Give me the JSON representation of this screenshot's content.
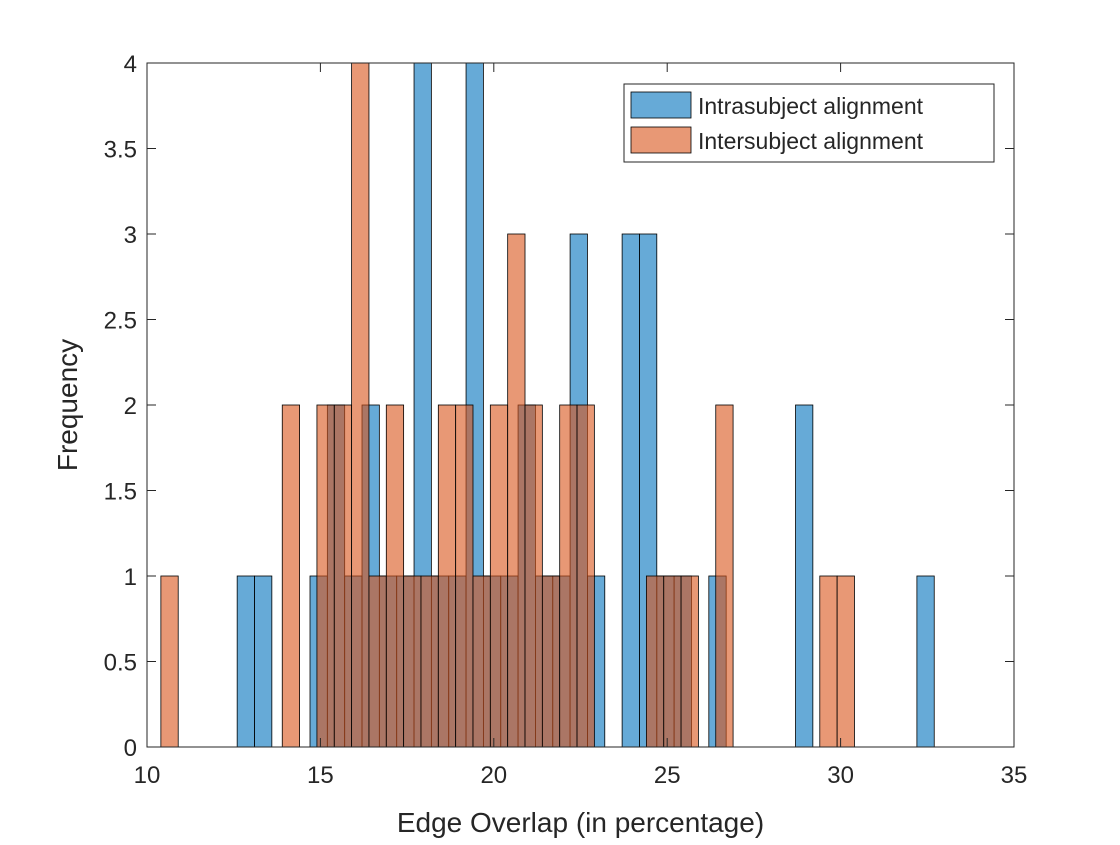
{
  "chart_data": {
    "type": "bar",
    "subtype": "overlapping-histogram",
    "title": "",
    "xlabel": "Edge Overlap (in percentage)",
    "ylabel": "Frequency",
    "xlim": [
      10,
      35
    ],
    "ylim": [
      0,
      4
    ],
    "xticks": [
      10,
      15,
      20,
      25,
      30,
      35
    ],
    "xtick_labels": [
      "10",
      "15",
      "20",
      "25",
      "30",
      "35"
    ],
    "yticks": [
      0,
      0.5,
      1,
      1.5,
      2,
      2.5,
      3,
      3.5,
      4
    ],
    "ytick_labels": [
      "0",
      "0.5",
      "1",
      "1.5",
      "2",
      "2.5",
      "3",
      "3.5",
      "4"
    ],
    "grid": false,
    "legend_position": "top-right",
    "series": [
      {
        "name": "Intrasubject alignment",
        "color": "#0072BD",
        "fill_opacity": 0.6,
        "bin_width": 0.5,
        "bins": [
          {
            "start": 12.6,
            "count": 1
          },
          {
            "start": 13.1,
            "count": 1
          },
          {
            "start": 14.7,
            "count": 1
          },
          {
            "start": 15.2,
            "count": 2
          },
          {
            "start": 15.7,
            "count": 1
          },
          {
            "start": 16.2,
            "count": 2
          },
          {
            "start": 16.7,
            "count": 1
          },
          {
            "start": 17.2,
            "count": 1
          },
          {
            "start": 17.7,
            "count": 4
          },
          {
            "start": 18.2,
            "count": 1
          },
          {
            "start": 18.7,
            "count": 1
          },
          {
            "start": 19.2,
            "count": 4
          },
          {
            "start": 19.7,
            "count": 1
          },
          {
            "start": 20.2,
            "count": 1
          },
          {
            "start": 20.7,
            "count": 2
          },
          {
            "start": 21.2,
            "count": 1
          },
          {
            "start": 21.7,
            "count": 1
          },
          {
            "start": 22.2,
            "count": 3
          },
          {
            "start": 22.7,
            "count": 1
          },
          {
            "start": 23.7,
            "count": 3
          },
          {
            "start": 24.2,
            "count": 3
          },
          {
            "start": 24.7,
            "count": 1
          },
          {
            "start": 25.2,
            "count": 1
          },
          {
            "start": 26.2,
            "count": 1
          },
          {
            "start": 28.7,
            "count": 2
          },
          {
            "start": 32.2,
            "count": 1
          }
        ]
      },
      {
        "name": "Intersubject alignment",
        "color": "#D95319",
        "fill_opacity": 0.6,
        "bin_width": 0.5,
        "bins": [
          {
            "start": 10.4,
            "count": 1
          },
          {
            "start": 13.9,
            "count": 2
          },
          {
            "start": 14.9,
            "count": 2
          },
          {
            "start": 15.4,
            "count": 2
          },
          {
            "start": 15.9,
            "count": 4
          },
          {
            "start": 16.4,
            "count": 1
          },
          {
            "start": 16.9,
            "count": 2
          },
          {
            "start": 17.4,
            "count": 1
          },
          {
            "start": 17.9,
            "count": 1
          },
          {
            "start": 18.4,
            "count": 2
          },
          {
            "start": 18.9,
            "count": 2
          },
          {
            "start": 19.4,
            "count": 1
          },
          {
            "start": 19.9,
            "count": 2
          },
          {
            "start": 20.4,
            "count": 3
          },
          {
            "start": 20.9,
            "count": 2
          },
          {
            "start": 21.4,
            "count": 1
          },
          {
            "start": 21.9,
            "count": 2
          },
          {
            "start": 22.4,
            "count": 2
          },
          {
            "start": 24.4,
            "count": 1
          },
          {
            "start": 24.9,
            "count": 1
          },
          {
            "start": 25.4,
            "count": 1
          },
          {
            "start": 26.4,
            "count": 2
          },
          {
            "start": 29.4,
            "count": 1
          },
          {
            "start": 29.9,
            "count": 1
          }
        ]
      }
    ]
  }
}
